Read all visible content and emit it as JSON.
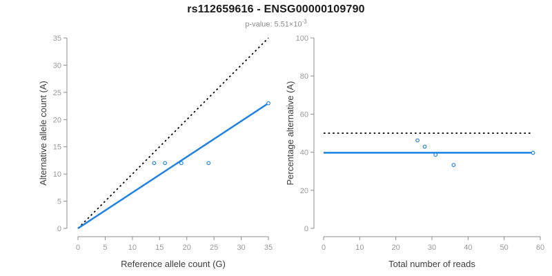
{
  "header": {
    "title": "rs112659616 - ENSG00000109790",
    "subtitle": "p-value: 5.51×10⁻³",
    "subtitle_base": "p-value: 5.51×10",
    "subtitle_exp": "-3"
  },
  "colors": {
    "accent_blue": "#1E82E5",
    "dotted_black": "#000000",
    "axis_line": "#8c8c8c",
    "tick_label": "#999999",
    "axis_title": "#3c3c3c",
    "title": "#1a1a1a",
    "subtitle": "#8c8c8c",
    "background": "#ffffff"
  },
  "chart_data": {
    "title": "rs112659616 - ENSG00000109790",
    "subtitle": "p-value: 5.51×10⁻³",
    "plots": [
      {
        "name": "allele-counts",
        "type": "scatter",
        "xlabel": "Reference allele count (G)",
        "ylabel": "Alternative allele count (A)",
        "xlim": [
          0,
          35
        ],
        "ylim": [
          0,
          35
        ],
        "xticks": [
          0,
          5,
          10,
          15,
          20,
          25,
          30,
          35
        ],
        "yticks": [
          0,
          5,
          10,
          15,
          20,
          25,
          30,
          35
        ],
        "grid": false,
        "legend": false,
        "points": [
          [
            14,
            12
          ],
          [
            16,
            12
          ],
          [
            19,
            12
          ],
          [
            24,
            12
          ],
          [
            35,
            23
          ]
        ],
        "lines": [
          {
            "name": "identity-line",
            "style": "dotted",
            "color": "#000000",
            "width": 1.8,
            "from": [
              0,
              0
            ],
            "to": [
              35,
              35
            ]
          },
          {
            "name": "fit-line",
            "style": "solid",
            "color": "#1E82E5",
            "width": 2.5,
            "from": [
              0,
              0
            ],
            "to": [
              35,
              23
            ]
          }
        ]
      },
      {
        "name": "percentage-alternative",
        "type": "scatter",
        "xlabel": "Total number of reads",
        "ylabel": "Percentage alternative (A)",
        "xlim": [
          0,
          60
        ],
        "ylim": [
          0,
          100
        ],
        "xticks": [
          0,
          10,
          20,
          30,
          40,
          50,
          60
        ],
        "yticks": [
          0,
          20,
          40,
          60,
          80,
          100
        ],
        "grid": false,
        "legend": false,
        "points": [
          [
            26,
            46.2
          ],
          [
            28,
            42.9
          ],
          [
            31,
            38.7
          ],
          [
            36,
            33.3
          ],
          [
            58,
            39.7
          ]
        ],
        "lines": [
          {
            "name": "expected-50pct-line",
            "style": "dotted",
            "color": "#000000",
            "width": 1.8,
            "from": [
              0,
              50
            ],
            "to": [
              58,
              50
            ]
          },
          {
            "name": "mean-percentage-line",
            "style": "solid",
            "color": "#1E82E5",
            "width": 2.5,
            "from": [
              0,
              39.7
            ],
            "to": [
              58,
              39.7
            ]
          }
        ]
      }
    ]
  }
}
